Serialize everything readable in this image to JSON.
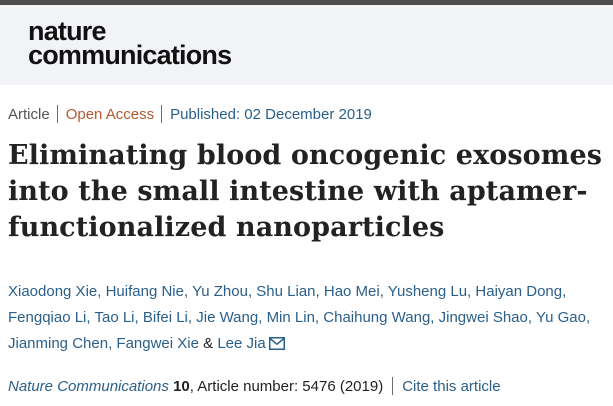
{
  "site": {
    "logo_line1": "nature",
    "logo_line2": "communications"
  },
  "article_meta": {
    "type": "Article",
    "access": "Open Access",
    "published": "Published: 02 December 2019"
  },
  "article": {
    "title_lines": [
      "Eliminating blood oncogenic exosomes",
      "into the small intestine with aptamer-",
      "functionalized nanoparticles"
    ]
  },
  "authors": {
    "names": [
      "Xiaodong Xie",
      "Huifang Nie",
      "Yu Zhou",
      "Shu Lian",
      "Hao Mei",
      "Yusheng Lu",
      "Haiyan Dong",
      "Fengqiao Li",
      "Tao Li",
      "Bifei Li",
      "Jie Wang",
      "Min Lin",
      "Chaihung Wang",
      "Jingwei Shao",
      "Yu Gao",
      "Jianming Chen",
      "Fangwei Xie",
      "Lee Jia"
    ],
    "conjunction": "&",
    "contact_icon": "envelope-icon"
  },
  "citation": {
    "journal": "Nature Communications",
    "volume": "10",
    "article_number": ", Article number: 5476 (2019)",
    "cite_link": "Cite this article"
  },
  "colors": {
    "header_bg": "#f1f3f7",
    "top_bar": "#4d4d4d",
    "link": "#2a5f8a",
    "open_access": "#b45a2f"
  }
}
